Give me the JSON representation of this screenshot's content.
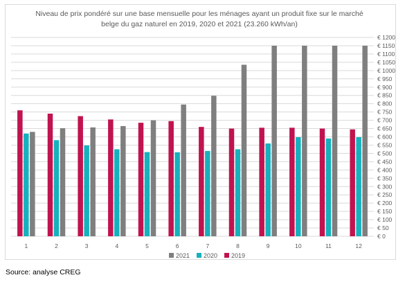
{
  "chart_data": {
    "type": "bar",
    "title": "Niveau de prix pondéré sur une base mensuelle pour les ménages ayant un produit fixe sur le marché belge du gaz naturel en 2019, 2020 et 2021 (23.260 kWh/an)",
    "title_lines": [
      "Niveau de prix pondéré sur une base mensuelle pour les ménages ayant un produit fixe sur le marché",
      "belge du gaz naturel en 2019, 2020 et 2021 (23.260 kWh/an)"
    ],
    "categories": [
      "1",
      "2",
      "3",
      "4",
      "5",
      "6",
      "7",
      "8",
      "9",
      "10",
      "11",
      "12"
    ],
    "series": [
      {
        "name": "2019",
        "color": "#c0134f",
        "values": [
          760,
          740,
          725,
          705,
          685,
          695,
          660,
          650,
          655,
          655,
          650,
          645
        ]
      },
      {
        "name": "2020",
        "color": "#17b1bd",
        "values": [
          620,
          580,
          548,
          525,
          508,
          507,
          515,
          525,
          560,
          598,
          590,
          598
        ]
      },
      {
        "name": "2021",
        "color": "#7f7f7f",
        "values": [
          630,
          652,
          657,
          665,
          700,
          795,
          848,
          1035,
          1150,
          1150,
          1150,
          1150
        ]
      }
    ],
    "legend_order": [
      "2021",
      "2020",
      "2019"
    ],
    "legend_position": "bottom",
    "y_axis_position": "right",
    "ylim": [
      0,
      1200
    ],
    "ytick_step": 50,
    "ytick_labels": [
      "€ 0",
      "€ 50",
      "€ 100",
      "€ 150",
      "€ 200",
      "€ 250",
      "€ 300",
      "€ 350",
      "€ 400",
      "€ 450",
      "€ 500",
      "€ 550",
      "€ 600",
      "€ 650",
      "€ 700",
      "€ 750",
      "€ 800",
      "€ 850",
      "€ 900",
      "€ 950",
      "€ 1000",
      "€ 1050",
      "€ 1100",
      "€ 1150",
      "€ 1200"
    ],
    "grid": true,
    "gridline_color": "#d9d9d9"
  },
  "source_text": "Source: analyse CREG"
}
